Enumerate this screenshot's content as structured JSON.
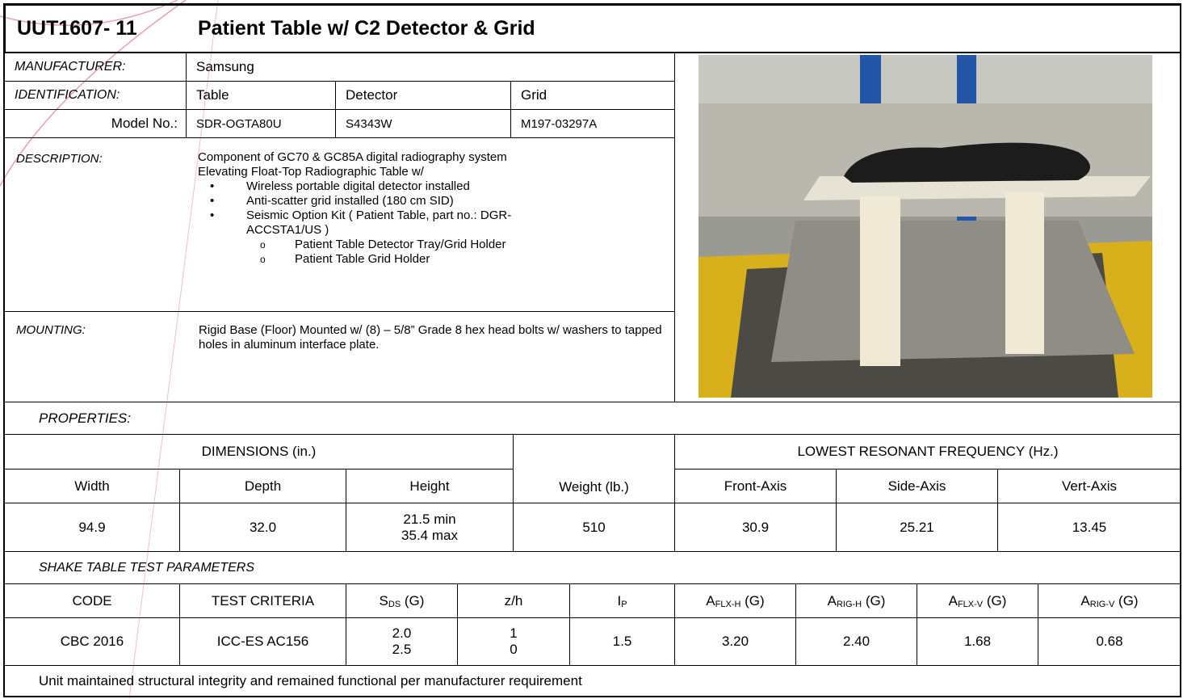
{
  "header": {
    "id": "UUT1607- 11",
    "title": "Patient Table w/ C2 Detector & Grid"
  },
  "manufacturer": {
    "label": "MANUFACTURER:",
    "value": "Samsung"
  },
  "identification": {
    "label": "IDENTIFICATION:",
    "columns": [
      "Table",
      "Detector",
      "Grid"
    ]
  },
  "model": {
    "label": "Model No.:",
    "values": [
      "SDR-OGTA80U",
      "S4343W",
      "M197-03297A"
    ]
  },
  "description": {
    "label": "DESCRIPTION:",
    "lines": [
      "Component of GC70 & GC85A digital radiography system",
      "Elevating Float-Top Radiographic Table w/"
    ],
    "bullets": [
      "Wireless portable digital detector installed",
      "Anti-scatter grid installed (180 cm SID)",
      "Seismic Option Kit ( Patient Table, part no.: DGR-ACCSTA1/US )"
    ],
    "sub_bullets": [
      "Patient Table Detector Tray/Grid Holder",
      "Patient Table Grid Holder"
    ]
  },
  "mounting": {
    "label": "MOUNTING:",
    "text": "Rigid Base (Floor) Mounted w/ (8) – 5/8” Grade 8 hex head bolts w/ washers to tapped holes in aluminum interface plate."
  },
  "properties": {
    "label": "PROPERTIES:",
    "dimensions_header": "DIMENSIONS (in.)",
    "frequency_header": "LOWEST RESONANT FREQUENCY (Hz.)",
    "columns": [
      "Width",
      "Depth",
      "Height",
      "Weight (lb.)",
      "Front-Axis",
      "Side-Axis",
      "Vert-Axis"
    ],
    "values": [
      "94.9",
      "32.0",
      [
        "21.5 min",
        "35.4 max"
      ],
      "510",
      "30.9",
      "25.21",
      "13.45"
    ]
  },
  "shake": {
    "label": "SHAKE TABLE TEST PARAMETERS",
    "columns": [
      "CODE",
      "TEST CRITERIA",
      {
        "main": "S",
        "sub": "DS",
        "tail": " (G)"
      },
      "z/h",
      {
        "main": "I",
        "sub": "P"
      },
      {
        "main": "A",
        "sub": "FLX-H",
        "tail": " (G)"
      },
      {
        "main": "A",
        "sub": "RIG-H",
        "tail": " (G)"
      },
      {
        "main": "A",
        "sub": "FLX-V",
        "tail": " (G)"
      },
      {
        "main": "A",
        "sub": "RIG-V",
        "tail": " (G)"
      }
    ],
    "values": [
      "CBC 2016",
      "ICC-ES AC156",
      [
        "2.0",
        "2.5"
      ],
      [
        "1",
        "0"
      ],
      "1.5",
      "3.20",
      "2.40",
      "1.68",
      "0.68"
    ]
  },
  "result": "Unit maintained structural integrity and remained functional per manufacturer requirement"
}
